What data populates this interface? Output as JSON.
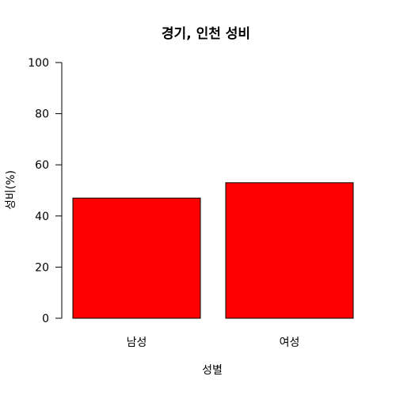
{
  "chart_data": {
    "type": "bar",
    "title": "경기, 인천 성비",
    "xlabel": "성별",
    "ylabel": "성비(%)",
    "categories": [
      "남성",
      "여성"
    ],
    "values": [
      47,
      53
    ],
    "ylim": [
      0,
      100
    ],
    "yticks": [
      0,
      20,
      40,
      60,
      80,
      100
    ],
    "grid": false,
    "legend": "none",
    "bar_color": "#ff0000",
    "bar_border_color": "#000000"
  }
}
